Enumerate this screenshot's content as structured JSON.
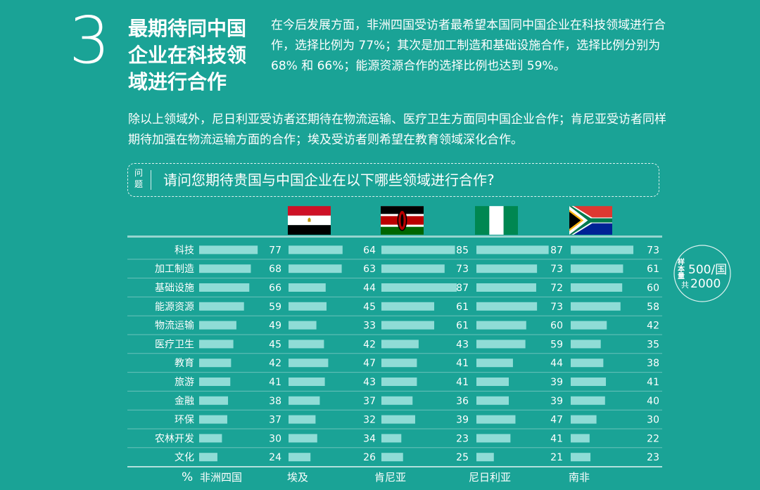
{
  "section": {
    "number": "3",
    "title": "最期待同中国企业在科技领域进行合作",
    "intro": "在今后发展方面，非洲四国受访者最希望本国同中国企业在科技领域进行合作，选择比例为 77%；其次是加工制造和基础设施合作，选择比例分别为 68% 和 66%；能源资源合作的选择比例也达到 59%。",
    "paragraph": "除以上领域外，尼日利亚受访者还期待在物流运输、医疗卫生方面同中国企业合作；肯尼亚受访者同样期待加强在物流运输方面的合作；埃及受访者则希望在教育领域深化合作。"
  },
  "question": {
    "tag": "问题",
    "text": "请问您期待贵国与中国企业在以下哪些领域进行合作?"
  },
  "sample_badge": {
    "label": "样本量",
    "line1": "500/国",
    "line2_prefix": "共",
    "line2": "2000"
  },
  "colors": {
    "background": "#1aa396",
    "bar": "#8fdcd6",
    "text": "#ffffff"
  },
  "chart_data": {
    "type": "bar",
    "unit": "%",
    "categories": [
      "科技",
      "加工制造",
      "基础设施",
      "能源资源",
      "物流运输",
      "医疗卫生",
      "教育",
      "旅游",
      "金融",
      "环保",
      "农林开发",
      "文化"
    ],
    "series": [
      {
        "name": "非洲四国",
        "values": [
          77,
          68,
          66,
          59,
          49,
          45,
          42,
          41,
          38,
          37,
          30,
          24
        ]
      },
      {
        "name": "埃及",
        "values": [
          64,
          63,
          44,
          45,
          33,
          42,
          47,
          43,
          37,
          32,
          34,
          26
        ]
      },
      {
        "name": "肯尼亚",
        "values": [
          85,
          73,
          87,
          61,
          61,
          43,
          41,
          41,
          36,
          39,
          23,
          25
        ]
      },
      {
        "name": "尼日利亚",
        "values": [
          87,
          73,
          72,
          73,
          60,
          59,
          44,
          39,
          39,
          47,
          41,
          21
        ]
      },
      {
        "name": "南非",
        "values": [
          73,
          61,
          60,
          58,
          42,
          35,
          38,
          41,
          40,
          30,
          22,
          23
        ]
      }
    ],
    "flags": [
      "egypt-flag",
      "kenya-flag",
      "nigeria-flag",
      "south-africa-flag"
    ]
  }
}
